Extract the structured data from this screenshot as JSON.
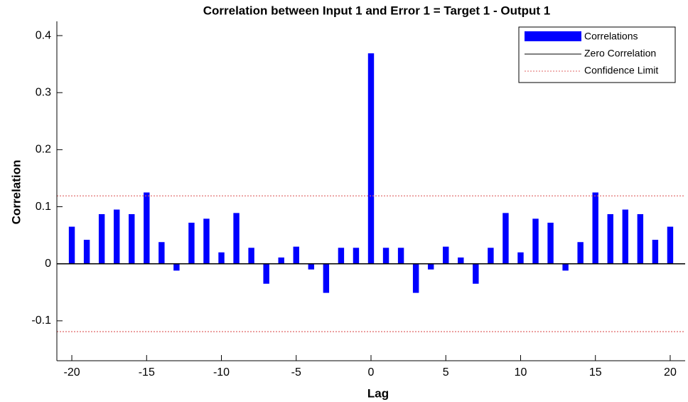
{
  "chart_data": {
    "type": "bar",
    "title": "Correlation between Input 1 and Error 1 = Target 1 - Output 1",
    "x_label": "Lag",
    "y_label": "Correlation",
    "x": [
      -20,
      -19,
      -18,
      -17,
      -16,
      -15,
      -14,
      -13,
      -12,
      -11,
      -10,
      -9,
      -8,
      -7,
      -6,
      -5,
      -4,
      -3,
      -2,
      -1,
      0,
      1,
      2,
      3,
      4,
      5,
      6,
      7,
      8,
      9,
      10,
      11,
      12,
      13,
      14,
      15,
      16,
      17,
      18,
      19,
      20
    ],
    "series": [
      {
        "name": "Correlations",
        "color": "#0000ff",
        "values": [
          0.065,
          0.042,
          0.087,
          0.095,
          0.087,
          0.125,
          0.038,
          -0.012,
          0.072,
          0.079,
          0.02,
          0.089,
          0.028,
          -0.035,
          0.011,
          0.03,
          -0.01,
          -0.051,
          0.028,
          0.028,
          0.369,
          0.028,
          0.028,
          -0.051,
          -0.01,
          0.03,
          0.011,
          -0.035,
          0.028,
          0.089,
          0.02,
          0.079,
          0.072,
          -0.012,
          0.038,
          0.125,
          0.087,
          0.095,
          0.087,
          0.042,
          0.065
        ]
      }
    ],
    "zero_line": {
      "name": "Zero Correlation",
      "value": 0,
      "color": "#000000"
    },
    "confidence_limit": {
      "name": "Confidence Limit",
      "values": [
        0.119,
        -0.119
      ],
      "color": "#e06666"
    },
    "xlim": [
      -21,
      21
    ],
    "xticks": [
      -20,
      -15,
      -10,
      -5,
      0,
      5,
      10,
      15,
      20
    ],
    "ylim": [
      -0.17,
      0.425
    ],
    "yticks": [
      -0.1,
      0,
      0.1,
      0.2,
      0.3,
      0.4
    ],
    "legend": "upper right"
  }
}
